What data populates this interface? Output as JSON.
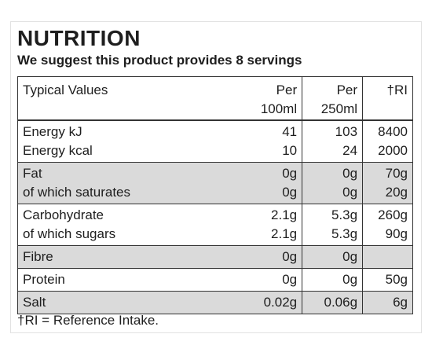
{
  "header": {
    "title": "NUTRITION",
    "subtitle": "We suggest this product provides 8 servings"
  },
  "table": {
    "columns": [
      [
        "Typical Values"
      ],
      [
        "Per",
        "100ml"
      ],
      [
        "Per",
        "250ml"
      ],
      [
        "†RI"
      ]
    ],
    "groups": [
      {
        "rows": [
          [
            "Energy kJ",
            "41",
            "103",
            "8400"
          ],
          [
            "Energy kcal",
            "10",
            "24",
            "2000"
          ]
        ]
      },
      {
        "rows": [
          [
            "Fat",
            "0g",
            "0g",
            "70g"
          ],
          [
            "of which saturates",
            "0g",
            "0g",
            "20g"
          ]
        ]
      },
      {
        "rows": [
          [
            "Carbohydrate",
            "2.1g",
            "5.3g",
            "260g"
          ],
          [
            "of which sugars",
            "2.1g",
            "5.3g",
            "90g"
          ]
        ]
      },
      {
        "rows": [
          [
            "Fibre",
            "0g",
            "0g"
          ]
        ]
      },
      {
        "rows": [
          [
            "Protein",
            "0g",
            "0g",
            "50g"
          ]
        ]
      },
      {
        "rows": [
          [
            "Salt",
            "0.02g",
            "0.06g",
            "6g"
          ]
        ]
      }
    ]
  },
  "footnote": "†RI = Reference Intake."
}
